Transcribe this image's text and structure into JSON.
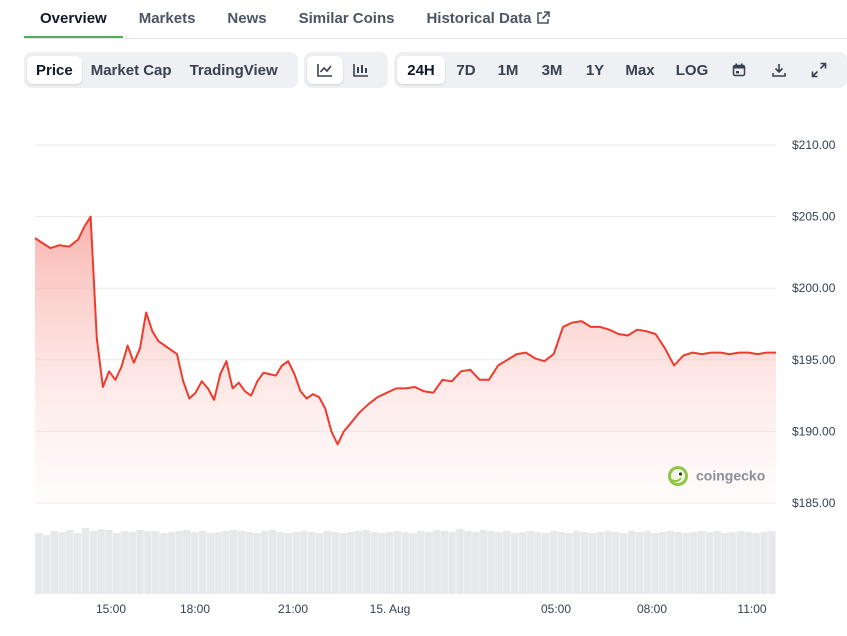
{
  "tabs": [
    {
      "label": "Overview",
      "active": true
    },
    {
      "label": "Markets"
    },
    {
      "label": "News"
    },
    {
      "label": "Similar Coins"
    },
    {
      "label": "Historical Data",
      "external": true
    }
  ],
  "toolbar": {
    "views": [
      "Price",
      "Market Cap",
      "TradingView"
    ],
    "selected_view": "Price",
    "chart_types": [
      {
        "icon": "line-chart-icon",
        "selected": true
      },
      {
        "icon": "candlestick-icon",
        "selected": false
      }
    ],
    "ranges": [
      "24H",
      "7D",
      "1M",
      "3M",
      "1Y",
      "Max",
      "LOG"
    ],
    "selected_range": "24H",
    "icons": [
      "calendar-icon",
      "download-icon",
      "fullscreen-icon"
    ]
  },
  "watermark": "coingecko",
  "colors": {
    "line": "#ef3b2d",
    "fill_top": "#f9a7a0",
    "accent": "#4caf50"
  },
  "chart_data": {
    "type": "area",
    "y_ticks": [
      "$210.00",
      "$205.00",
      "$200.00",
      "$195.00",
      "$190.00",
      "$185.00"
    ],
    "ylim": [
      185,
      210
    ],
    "x_ticks": [
      "15:00",
      "18:00",
      "21:00",
      "15. Aug",
      "05:00",
      "08:00",
      "11:00"
    ],
    "x": [
      0,
      0.5,
      0.8,
      1.1,
      1.4,
      1.6,
      1.8,
      2.0,
      2.2,
      2.4,
      2.6,
      2.8,
      3.0,
      3.2,
      3.4,
      3.6,
      3.8,
      4.0,
      4.2,
      4.4,
      4.6,
      4.8,
      5.0,
      5.2,
      5.4,
      5.6,
      5.8,
      6.0,
      6.2,
      6.4,
      6.6,
      6.8,
      7.0,
      7.2,
      7.4,
      7.6,
      7.8,
      8.0,
      8.2,
      8.4,
      8.6,
      8.8,
      9.0,
      9.2,
      9.4,
      9.6,
      9.8,
      10.0,
      10.2,
      10.5,
      10.8,
      11.1,
      11.4,
      11.7,
      12.0,
      12.3,
      12.6,
      12.9,
      13.2,
      13.5,
      13.8,
      14.1,
      14.4,
      14.7,
      15.0,
      15.3,
      15.6,
      15.9,
      16.2,
      16.5,
      16.8,
      17.1,
      17.4,
      17.7,
      18.0,
      18.3,
      18.6,
      18.9,
      19.2,
      19.5,
      19.8,
      20.1,
      20.4,
      20.7,
      21.0,
      21.3,
      21.6,
      21.9,
      22.2,
      22.5,
      22.8,
      23.1,
      23.4,
      23.7,
      24.0
    ],
    "values": [
      203.5,
      202.8,
      203.0,
      202.9,
      203.4,
      204.3,
      205.0,
      196.5,
      193.1,
      194.2,
      193.6,
      194.5,
      196.0,
      194.8,
      195.8,
      198.3,
      197.0,
      196.3,
      196.0,
      195.7,
      195.4,
      193.5,
      192.3,
      192.7,
      193.5,
      193.0,
      192.2,
      194.0,
      194.9,
      193.0,
      193.4,
      192.8,
      192.5,
      193.5,
      194.1,
      194.0,
      193.9,
      194.6,
      194.9,
      194.0,
      192.8,
      192.3,
      192.6,
      192.4,
      191.6,
      190.0,
      189.1,
      190.0,
      190.5,
      191.3,
      191.9,
      192.4,
      192.7,
      193.0,
      193.0,
      193.1,
      192.8,
      192.7,
      193.6,
      193.5,
      194.2,
      194.3,
      193.6,
      193.6,
      194.6,
      195.0,
      195.4,
      195.5,
      195.1,
      194.9,
      195.4,
      197.3,
      197.6,
      197.7,
      197.3,
      197.3,
      197.1,
      196.8,
      196.7,
      197.1,
      197.0,
      196.8,
      195.8,
      194.6,
      195.3,
      195.5,
      195.4,
      195.5,
      195.5,
      195.4,
      195.5,
      195.5,
      195.4,
      195.5,
      195.5
    ],
    "volume": [
      0.6,
      0.58,
      0.62,
      0.61,
      0.63,
      0.6,
      0.65,
      0.62,
      0.64,
      0.63,
      0.6,
      0.62,
      0.61,
      0.63,
      0.62,
      0.62,
      0.6,
      0.61,
      0.62,
      0.63,
      0.61,
      0.62,
      0.6,
      0.61,
      0.62,
      0.63,
      0.62,
      0.61,
      0.6,
      0.62,
      0.63,
      0.61,
      0.6,
      0.61,
      0.62,
      0.61,
      0.6,
      0.62,
      0.61,
      0.6,
      0.61,
      0.62,
      0.63,
      0.61,
      0.6,
      0.61,
      0.62,
      0.61,
      0.6,
      0.62,
      0.61,
      0.63,
      0.62,
      0.61,
      0.64,
      0.62,
      0.61,
      0.63,
      0.62,
      0.61,
      0.62,
      0.6,
      0.61,
      0.62,
      0.61,
      0.6,
      0.62,
      0.61,
      0.6,
      0.62,
      0.61,
      0.6,
      0.61,
      0.62,
      0.61,
      0.6,
      0.62,
      0.61,
      0.62,
      0.6,
      0.61,
      0.62,
      0.61,
      0.6,
      0.61,
      0.62,
      0.61,
      0.62,
      0.6,
      0.61,
      0.62,
      0.61,
      0.6,
      0.61,
      0.62
    ]
  }
}
